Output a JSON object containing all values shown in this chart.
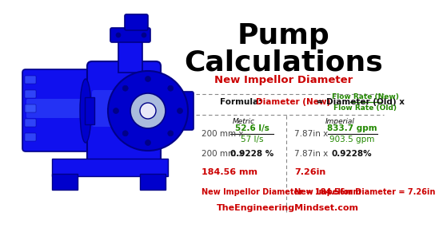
{
  "title_line1": "Pump",
  "title_line2": "Calculations",
  "subtitle": "New Impellor Diameter",
  "formula_label": "Formula:",
  "formula_red": "Diameter (New)",
  "formula_eq": " = Diameter (Old) x",
  "formula_green_num": "Flow Rate (New)",
  "formula_green_den": "Flow Rate (Old)",
  "metric_label": "Metric",
  "imperial_label": "Imperial",
  "metric_row1_left": "200 mm x",
  "metric_frac_num": "52.6 l/s",
  "metric_frac_den": "57 l/s",
  "metric_row2_left": "200 mm x",
  "metric_row2_right": "0.9228 %",
  "metric_result": "184.56 mm",
  "metric_final": "New Impellor Diameter = 184.56mm",
  "imperial_row1_left": "7.87in x",
  "imperial_frac_num": "833.7 gpm",
  "imperial_frac_den": "903.5 gpm",
  "imperial_row2_left": "7.87in x",
  "imperial_row2_right": "0.9228%",
  "imperial_result": "7.26in",
  "imperial_final": "New Impellor Diameter = 7.26in",
  "website": "TheEngineeringMindset.com",
  "bg_color": "#ffffff",
  "title_color": "#000000",
  "subtitle_color": "#cc0000",
  "red_color": "#cc0000",
  "green_color": "#228800",
  "black_color": "#111111",
  "dark_gray": "#444444",
  "website_color": "#cc0000",
  "pump_blue1": "#1010ee",
  "pump_blue2": "#0000cc",
  "pump_blue3": "#2233ff",
  "pump_dark": "#000088",
  "pump_light": "#4466ff"
}
